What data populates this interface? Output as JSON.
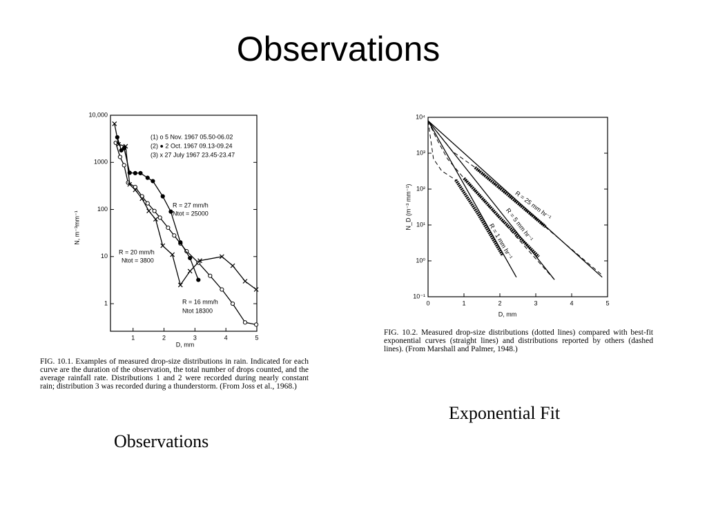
{
  "title": "Observations",
  "figures": [
    {
      "chart": {
        "type": "line",
        "log_y": true,
        "xlim": [
          0.27,
          5
        ],
        "xticks": [
          1,
          2,
          3,
          4,
          5
        ],
        "ylim": [
          0.26,
          10000
        ],
        "yticks": [
          {
            "value": 10000,
            "label": "10,000"
          },
          1000,
          100,
          10,
          1
        ],
        "x_label": "D,  mm",
        "y_label": "N,  m⁻³mm⁻¹",
        "legend_lines": [
          "(1) o  5 Nov. 1967 05.50-06.02",
          "(2) ●  2 Oct. 1967 09.13-09.24",
          "(3) x 27 July 1967 23.45-23.47"
        ],
        "annotations": [
          "R = 27 mm/h",
          "Ntot = 25000",
          "R = 20 mm/h",
          "Ntot = 3800",
          "R = 16 mm/h",
          "Ntot 18300"
        ],
        "series": [
          {
            "color": "#000000",
            "marker": "circle-open",
            "dash": "solid",
            "x": [
              0.44,
              0.58,
              0.71,
              0.84,
              1.07,
              1.29,
              1.47,
              1.69,
              1.87,
              2.13,
              2.33,
              2.53,
              2.73,
              3.11,
              3.49,
              3.87,
              4.22,
              4.62,
              4.98
            ],
            "values": [
              2600,
              1300,
              870,
              370,
              300,
              190,
              135,
              93,
              67,
              41,
              28,
              19,
              13,
              7.4,
              3.9,
              2,
              1,
              0.4,
              0.36
            ]
          },
          {
            "color": "#000000",
            "marker": "circle-filled",
            "dash": "solid",
            "x": [
              0.49,
              0.62,
              0.71,
              0.89,
              1.07,
              1.24,
              1.47,
              1.64,
              1.96,
              2.22,
              2.53,
              2.84,
              3.11
            ],
            "values": [
              3400,
              1800,
              2000,
              600,
              590,
              590,
              470,
              400,
              190,
              90,
              20,
              9.3,
              3.2
            ]
          },
          {
            "color": "#000000",
            "marker": "x",
            "dash": "solid",
            "x": [
              0.4,
              0.53,
              0.76,
              0.89,
              1.07,
              1.29,
              1.51,
              1.73,
              1.96,
              2.27,
              2.53,
              2.84,
              3.16,
              3.87,
              4.22,
              4.62,
              4.98
            ],
            "values": [
              6600,
              2400,
              2200,
              340,
              260,
              170,
              93,
              62,
              17,
              11,
              2.5,
              4.9,
              8.2,
              10,
              6.4,
              3,
              2
            ]
          }
        ]
      },
      "caption": "FIG. 10.1. Examples of measured drop-size distributions in rain. Indicated for each curve are the duration of the observation, the total number of drops counted, and the average rainfall rate. Distributions 1 and 2 were recorded during nearly constant rain; distribution 3 was recorded during a thunderstorm. (From Joss et al., 1968.)",
      "label": "Observations"
    },
    {
      "chart": {
        "type": "line",
        "log_y": true,
        "xlim": [
          0,
          5
        ],
        "xticks": [
          0,
          1,
          2,
          3,
          4,
          5
        ],
        "ylim": [
          0.1,
          10000
        ],
        "yticks": [
          {
            "value": 10000,
            "label": "10⁴"
          },
          {
            "value": 1000,
            "label": "10³"
          },
          {
            "value": 100,
            "label": "10²"
          },
          {
            "value": 10,
            "label": "10¹"
          },
          {
            "value": 1,
            "label": "10⁰"
          },
          {
            "value": 0.1,
            "label": "10⁻¹"
          }
        ],
        "x_label": "D,  mm",
        "y_label": "N_D (m⁻³ mm⁻¹)",
        "annotations": [
          "R = 25 mm hr⁻¹",
          "R = 5 mm hr⁻¹",
          "R = 1 mm hr⁻¹"
        ],
        "series": [
          {
            "color": "#000000",
            "marker": "none",
            "dash": "solid",
            "x": [
              0,
              4.85
            ],
            "values": [
              8000,
              0.35
            ]
          },
          {
            "color": "#000000",
            "marker": "none",
            "dash": "solid",
            "x": [
              0,
              3.52
            ],
            "values": [
              8000,
              0.3
            ]
          },
          {
            "color": "#000000",
            "marker": "none",
            "dash": "solid",
            "x": [
              0,
              2.46
            ],
            "values": [
              8000,
              0.35
            ]
          },
          {
            "color": "#000000",
            "marker": "none",
            "dash": "dotted-thick",
            "x": [
              1.31,
              2.3,
              3.27
            ],
            "values": [
              400,
              60,
              9
            ]
          },
          {
            "color": "#000000",
            "marker": "none",
            "dash": "dotted-thick",
            "x": [
              1,
              2,
              3.08
            ],
            "values": [
              200,
              16,
              1.3
            ]
          },
          {
            "color": "#000000",
            "marker": "none",
            "dash": "dotted-thick",
            "x": [
              0.77,
              1.4,
              2.08
            ],
            "values": [
              180,
              20,
              1.4
            ]
          },
          {
            "color": "#000000",
            "marker": "none",
            "dash": "dashed",
            "x": [
              0,
              0.31,
              0.69,
              1.31,
              4.85
            ],
            "values": [
              8000,
              3300,
              1100,
              400,
              0.4
            ]
          },
          {
            "color": "#000000",
            "marker": "none",
            "dash": "dashed",
            "x": [
              0,
              0.23,
              0.54,
              1,
              3.52
            ],
            "values": [
              8000,
              2600,
              700,
              200,
              0.3
            ]
          },
          {
            "color": "#000000",
            "marker": "none",
            "dash": "dashed",
            "x": [
              0,
              0.15,
              0.38,
              0.77
            ],
            "values": [
              8000,
              700,
              320,
              180
            ]
          }
        ]
      },
      "caption": "FIG. 10.2. Measured drop-size distributions (dotted lines) compared with best-fit exponential curves (straight lines) and distributions reported by others (dashed lines). (From Marshall and Palmer, 1948.)",
      "label": "Exponential Fit"
    }
  ]
}
